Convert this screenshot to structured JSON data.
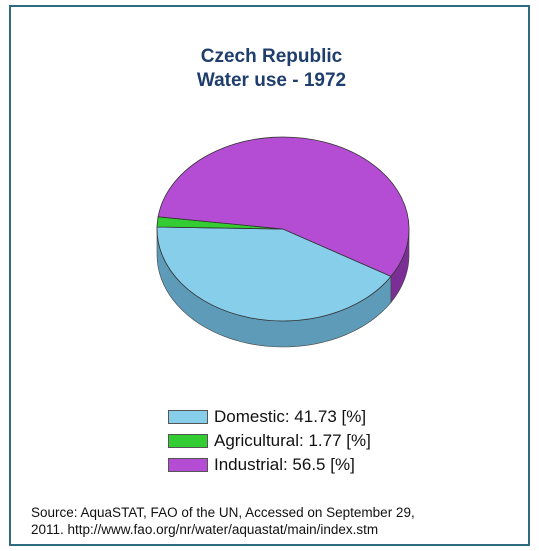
{
  "chart_data": {
    "type": "pie",
    "title_line1": "Czech Republic",
    "title_line2": "Water use - 1972",
    "series": [
      {
        "name": "Domestic",
        "value": 41.73,
        "legend_label": "Domestic: 41.73 [%]",
        "color": "#87ceeb",
        "side_color": "#5e9bb8"
      },
      {
        "name": "Agricultural",
        "value": 1.77,
        "legend_label": "Agricultural: 1.77 [%]",
        "color": "#33cc33",
        "side_color": "#229922"
      },
      {
        "name": "Industrial",
        "value": 56.5,
        "legend_label": "Industrial: 56.5 [%]",
        "color": "#b44cd4",
        "side_color": "#7b2f96"
      }
    ]
  },
  "source_line1": "Source: AquaSTAT, FAO of the UN, Accessed on September 29,",
  "source_line2": "2011. http://www.fao.org/nr/water/aquastat/main/index.stm"
}
